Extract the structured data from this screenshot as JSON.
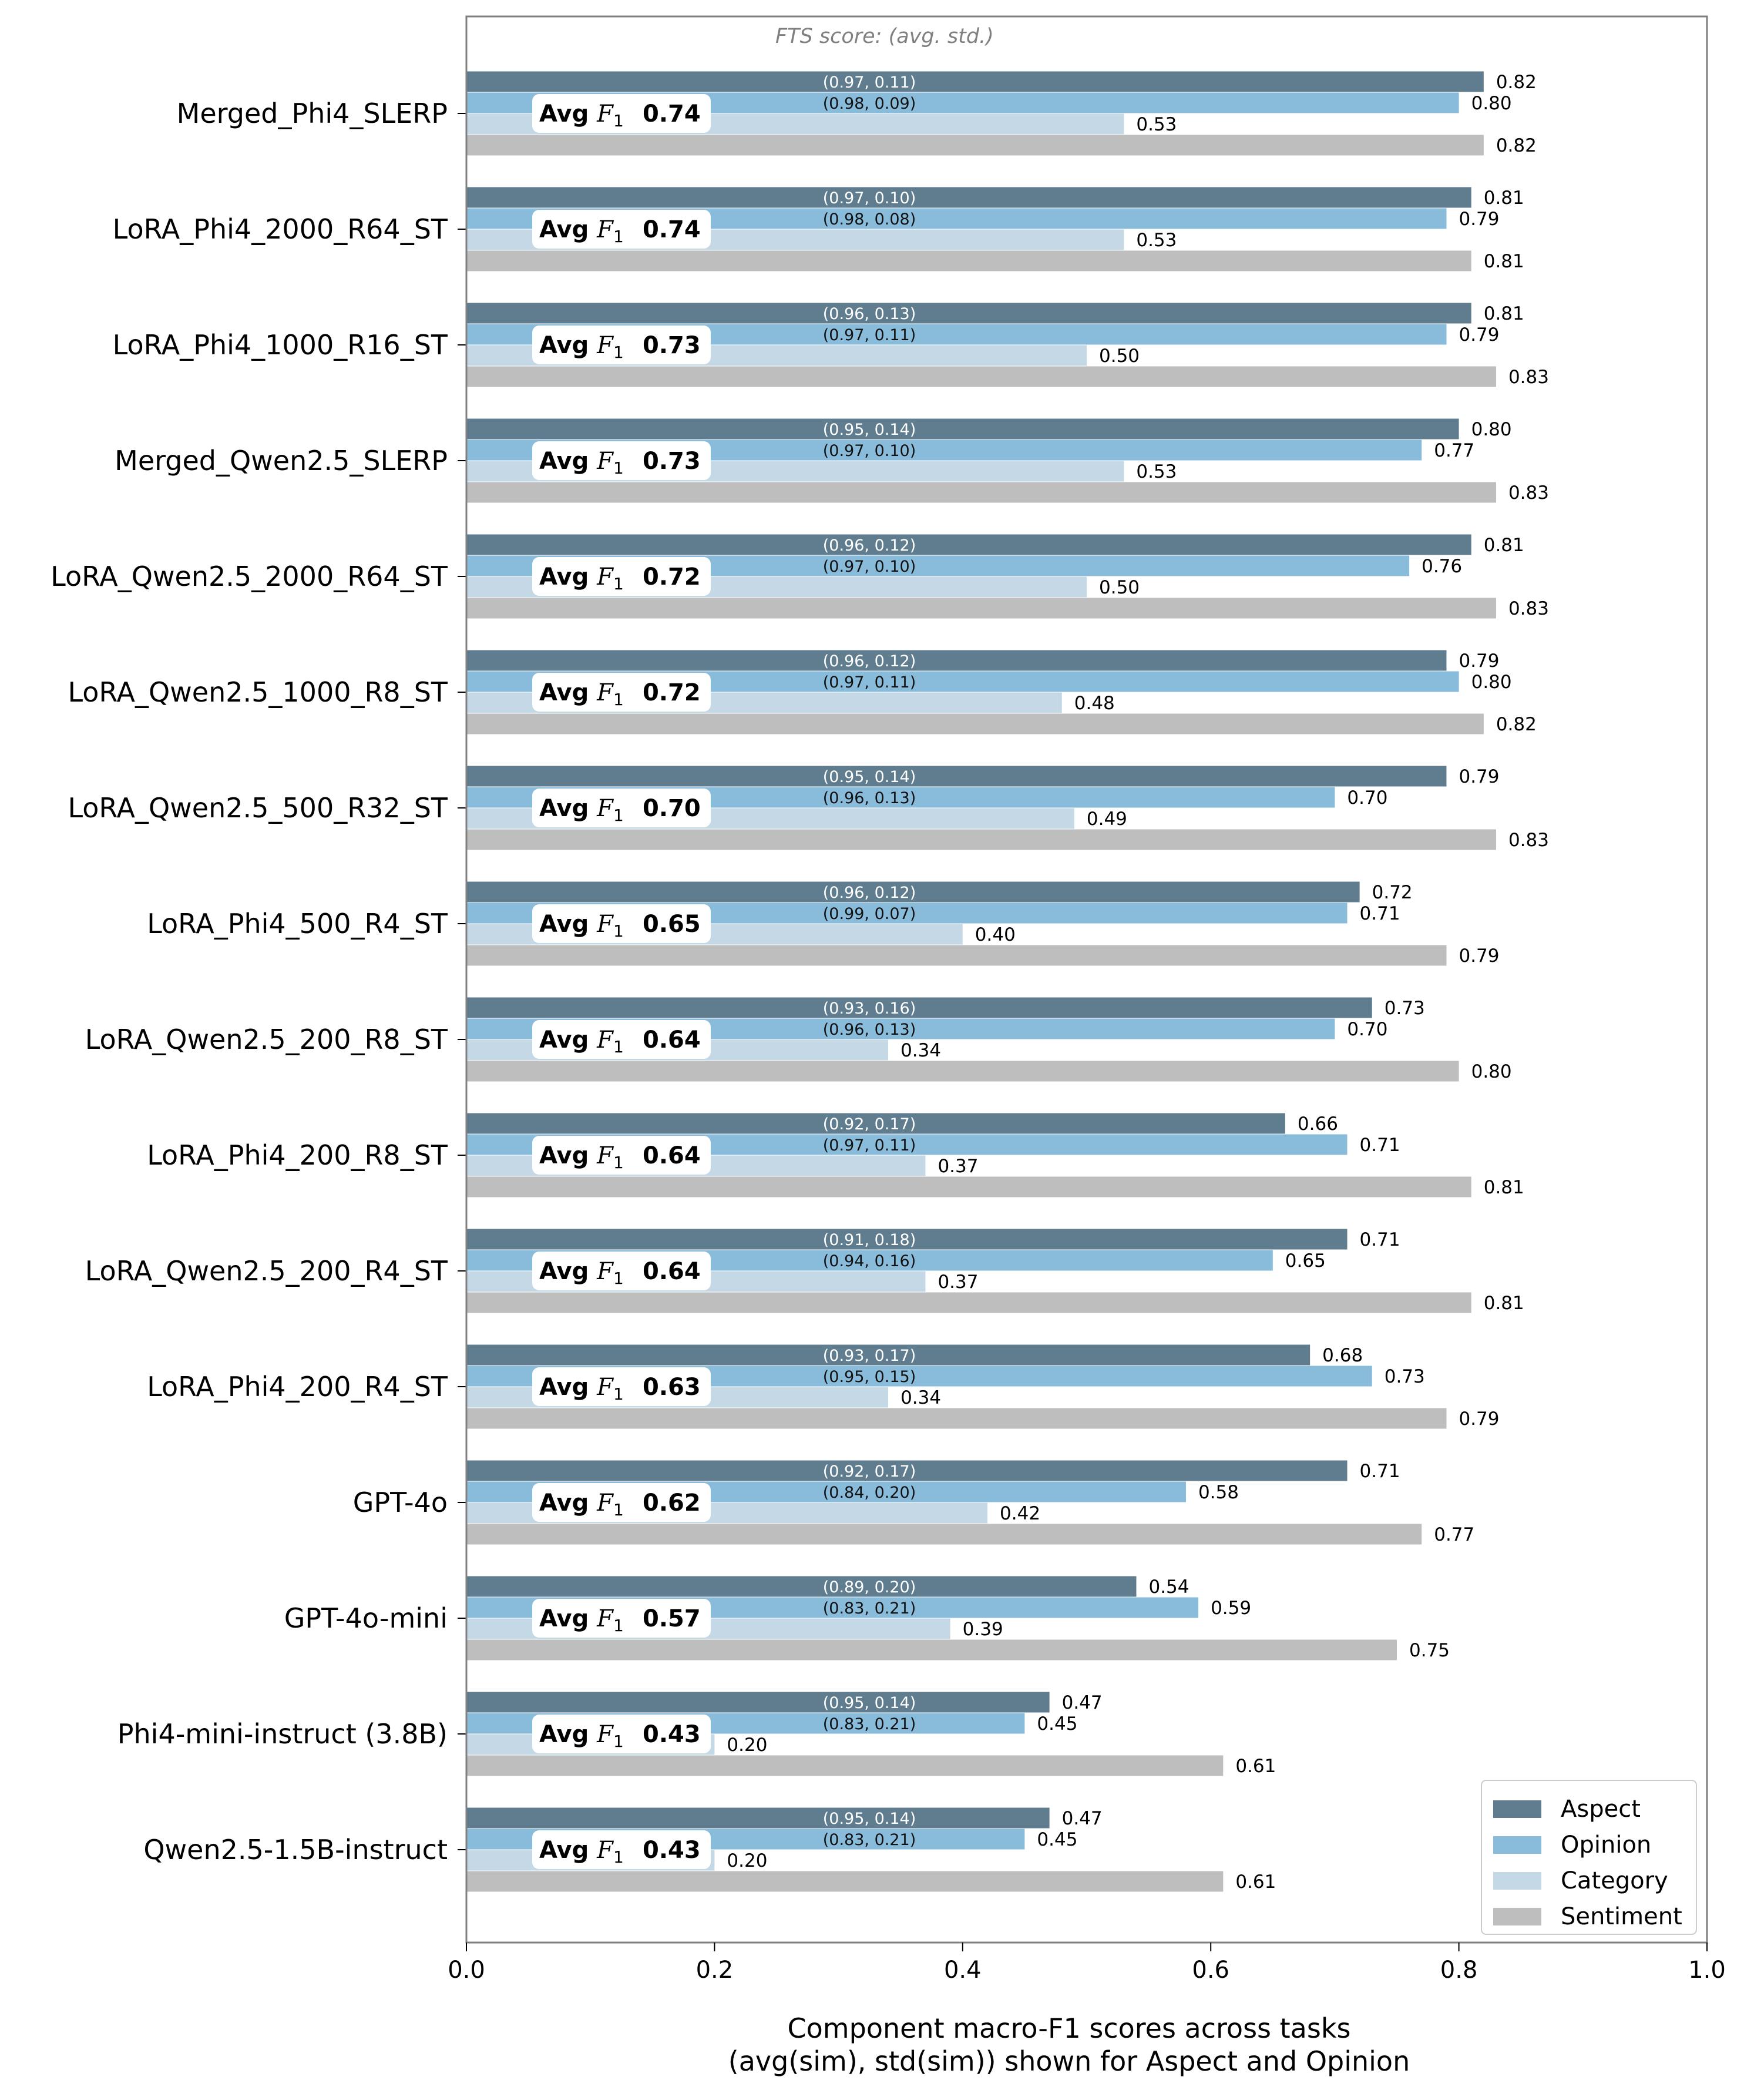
{
  "chart_data": {
    "type": "bar",
    "orientation": "horizontal",
    "annotation": "FTS score: (avg. std.)",
    "xlabel_lines": [
      "Component macro-F1 scores across tasks",
      "(avg(sim), std(sim)) shown for Aspect and Opinion"
    ],
    "xlim": [
      0,
      1
    ],
    "xticks": [
      "0.0",
      "0.2",
      "0.4",
      "0.6",
      "0.8",
      "1.0"
    ],
    "avg_prefix": "Avg",
    "avg_symbol": "F",
    "avg_subscript": "1",
    "legend_position": "lower-right",
    "grid": false,
    "colors": {
      "Aspect": "#5f7d8e",
      "Opinion": "#89bbdb",
      "Category": "#c4d8e6",
      "Sentiment": "#bebebe"
    },
    "series_names": [
      "Aspect",
      "Opinion",
      "Category",
      "Sentiment"
    ],
    "models": [
      {
        "name": "Merged_Phi4_SLERP",
        "avg": "0.74",
        "values": [
          0.82,
          0.8,
          0.53,
          0.82
        ],
        "labels": [
          "0.82",
          "0.80",
          "0.53",
          "0.82"
        ],
        "fts": [
          "(0.97, 0.11)",
          "(0.98, 0.09)"
        ]
      },
      {
        "name": "LoRA_Phi4_2000_R64_ST",
        "avg": "0.74",
        "values": [
          0.81,
          0.79,
          0.53,
          0.81
        ],
        "labels": [
          "0.81",
          "0.79",
          "0.53",
          "0.81"
        ],
        "fts": [
          "(0.97, 0.10)",
          "(0.98, 0.08)"
        ]
      },
      {
        "name": "LoRA_Phi4_1000_R16_ST",
        "avg": "0.73",
        "values": [
          0.81,
          0.79,
          0.5,
          0.83
        ],
        "labels": [
          "0.81",
          "0.79",
          "0.50",
          "0.83"
        ],
        "fts": [
          "(0.96, 0.13)",
          "(0.97, 0.11)"
        ]
      },
      {
        "name": "Merged_Qwen2.5_SLERP",
        "avg": "0.73",
        "values": [
          0.8,
          0.77,
          0.53,
          0.83
        ],
        "labels": [
          "0.80",
          "0.77",
          "0.53",
          "0.83"
        ],
        "fts": [
          "(0.95, 0.14)",
          "(0.97, 0.10)"
        ]
      },
      {
        "name": "LoRA_Qwen2.5_2000_R64_ST",
        "avg": "0.72",
        "values": [
          0.81,
          0.76,
          0.5,
          0.83
        ],
        "labels": [
          "0.81",
          "0.76",
          "0.50",
          "0.83"
        ],
        "fts": [
          "(0.96, 0.12)",
          "(0.97, 0.10)"
        ]
      },
      {
        "name": "LoRA_Qwen2.5_1000_R8_ST",
        "avg": "0.72",
        "values": [
          0.79,
          0.8,
          0.48,
          0.82
        ],
        "labels": [
          "0.79",
          "0.80",
          "0.48",
          "0.82"
        ],
        "fts": [
          "(0.96, 0.12)",
          "(0.97, 0.11)"
        ]
      },
      {
        "name": "LoRA_Qwen2.5_500_R32_ST",
        "avg": "0.70",
        "values": [
          0.79,
          0.7,
          0.49,
          0.83
        ],
        "labels": [
          "0.79",
          "0.70",
          "0.49",
          "0.83"
        ],
        "fts": [
          "(0.95, 0.14)",
          "(0.96, 0.13)"
        ]
      },
      {
        "name": "LoRA_Phi4_500_R4_ST",
        "avg": "0.65",
        "values": [
          0.72,
          0.71,
          0.4,
          0.79
        ],
        "labels": [
          "0.72",
          "0.71",
          "0.40",
          "0.79"
        ],
        "fts": [
          "(0.96, 0.12)",
          "(0.99, 0.07)"
        ]
      },
      {
        "name": "LoRA_Qwen2.5_200_R8_ST",
        "avg": "0.64",
        "values": [
          0.73,
          0.7,
          0.34,
          0.8
        ],
        "labels": [
          "0.73",
          "0.70",
          "0.34",
          "0.80"
        ],
        "fts": [
          "(0.93, 0.16)",
          "(0.96, 0.13)"
        ]
      },
      {
        "name": "LoRA_Phi4_200_R8_ST",
        "avg": "0.64",
        "values": [
          0.66,
          0.71,
          0.37,
          0.81
        ],
        "labels": [
          "0.66",
          "0.71",
          "0.37",
          "0.81"
        ],
        "fts": [
          "(0.92, 0.17)",
          "(0.97, 0.11)"
        ]
      },
      {
        "name": "LoRA_Qwen2.5_200_R4_ST",
        "avg": "0.64",
        "values": [
          0.71,
          0.65,
          0.37,
          0.81
        ],
        "labels": [
          "0.71",
          "0.65",
          "0.37",
          "0.81"
        ],
        "fts": [
          "(0.91, 0.18)",
          "(0.94, 0.16)"
        ]
      },
      {
        "name": "LoRA_Phi4_200_R4_ST",
        "avg": "0.63",
        "values": [
          0.68,
          0.73,
          0.34,
          0.79
        ],
        "labels": [
          "0.68",
          "0.73",
          "0.34",
          "0.79"
        ],
        "fts": [
          "(0.93, 0.17)",
          "(0.95, 0.15)"
        ]
      },
      {
        "name": "GPT-4o",
        "avg": "0.62",
        "values": [
          0.71,
          0.58,
          0.42,
          0.77
        ],
        "labels": [
          "0.71",
          "0.58",
          "0.42",
          "0.77"
        ],
        "fts": [
          "(0.92, 0.17)",
          "(0.84, 0.20)"
        ]
      },
      {
        "name": "GPT-4o-mini",
        "avg": "0.57",
        "values": [
          0.54,
          0.59,
          0.39,
          0.75
        ],
        "labels": [
          "0.54",
          "0.59",
          "0.39",
          "0.75"
        ],
        "fts": [
          "(0.89, 0.20)",
          "(0.83, 0.21)"
        ]
      },
      {
        "name": "Phi4-mini-instruct (3.8B)",
        "avg": "0.43",
        "values": [
          0.47,
          0.45,
          0.2,
          0.61
        ],
        "labels": [
          "0.47",
          "0.45",
          "0.20",
          "0.61"
        ],
        "fts": [
          "(0.95, 0.14)",
          "(0.83, 0.21)"
        ]
      },
      {
        "name": "Qwen2.5-1.5B-instruct",
        "avg": "0.43",
        "values": [
          0.47,
          0.45,
          0.2,
          0.61
        ],
        "labels": [
          "0.47",
          "0.45",
          "0.20",
          "0.61"
        ],
        "fts": [
          "(0.95, 0.14)",
          "(0.83, 0.21)"
        ]
      }
    ]
  }
}
